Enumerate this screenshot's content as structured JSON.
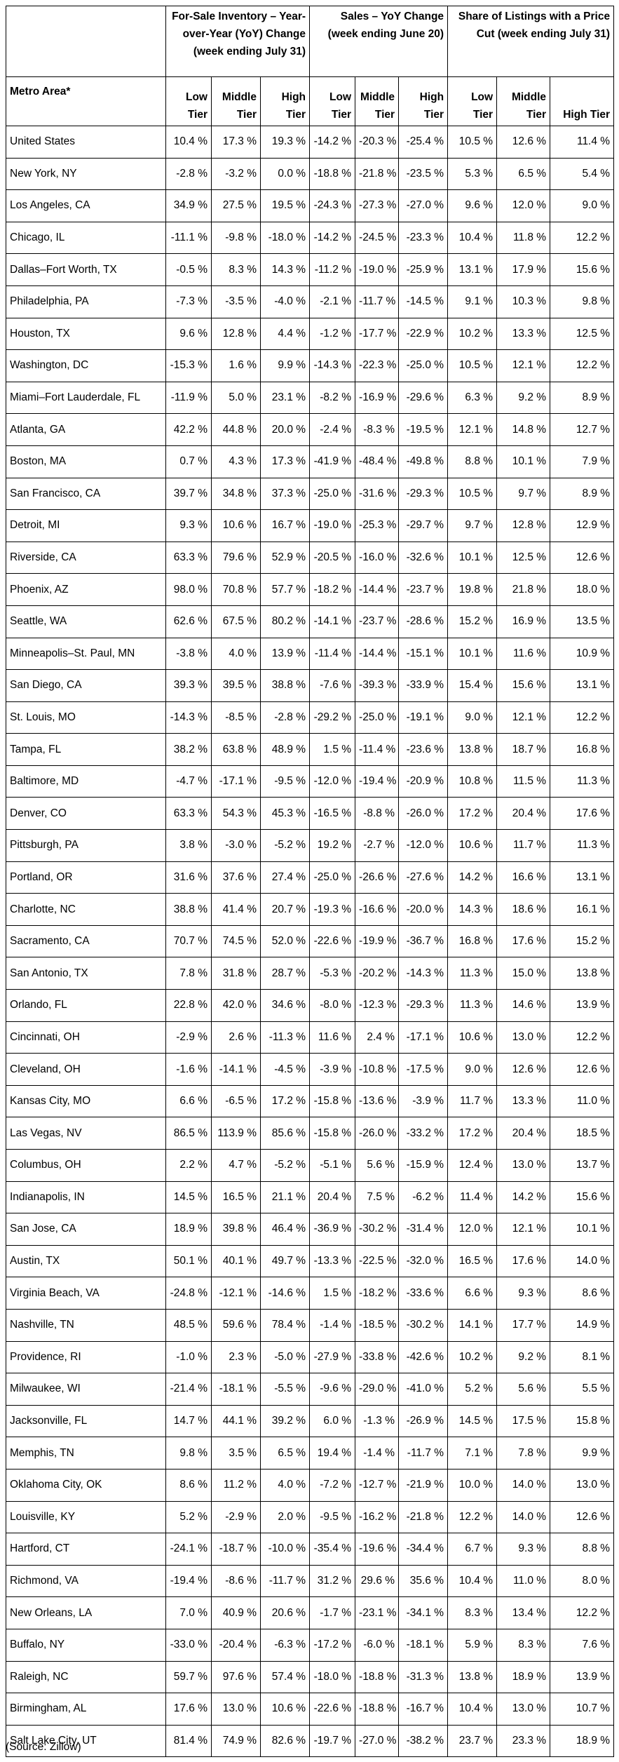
{
  "table": {
    "groups": [
      "For-Sale Inventory – Year-over-Year (YoY) Change (week ending July 31)",
      "Sales – YoY Change (week ending June 20)",
      "Share of Listings with a Price Cut (week ending July 31)"
    ],
    "metro_header": "Metro Area*",
    "tiers": [
      "Low Tier",
      "Middle Tier",
      "High Tier",
      "Low Tier",
      "Middle Tier",
      "High Tier",
      "Low Tier",
      "Middle Tier",
      "High Tier"
    ],
    "rows": [
      [
        "United States",
        "10.4 %",
        "17.3 %",
        "19.3 %",
        "-14.2 %",
        "-20.3 %",
        "-25.4 %",
        "10.5 %",
        "12.6 %",
        "11.4 %"
      ],
      [
        "New York, NY",
        "-2.8 %",
        "-3.2 %",
        "0.0 %",
        "-18.8 %",
        "-21.8 %",
        "-23.5 %",
        "5.3 %",
        "6.5 %",
        "5.4 %"
      ],
      [
        "Los Angeles, CA",
        "34.9 %",
        "27.5 %",
        "19.5 %",
        "-24.3 %",
        "-27.3 %",
        "-27.0 %",
        "9.6 %",
        "12.0 %",
        "9.0 %"
      ],
      [
        "Chicago, IL",
        "-11.1 %",
        "-9.8 %",
        "-18.0 %",
        "-14.2 %",
        "-24.5 %",
        "-23.3 %",
        "10.4 %",
        "11.8 %",
        "12.2 %"
      ],
      [
        "Dallas–Fort Worth, TX",
        "-0.5 %",
        "8.3 %",
        "14.3 %",
        "-11.2 %",
        "-19.0 %",
        "-25.9 %",
        "13.1 %",
        "17.9 %",
        "15.6 %"
      ],
      [
        "Philadelphia, PA",
        "-7.3 %",
        "-3.5 %",
        "-4.0 %",
        "-2.1 %",
        "-11.7 %",
        "-14.5 %",
        "9.1 %",
        "10.3 %",
        "9.8 %"
      ],
      [
        "Houston, TX",
        "9.6 %",
        "12.8 %",
        "4.4 %",
        "-1.2 %",
        "-17.7 %",
        "-22.9 %",
        "10.2 %",
        "13.3 %",
        "12.5 %"
      ],
      [
        "Washington, DC",
        "-15.3 %",
        "1.6 %",
        "9.9 %",
        "-14.3 %",
        "-22.3 %",
        "-25.0 %",
        "10.5 %",
        "12.1 %",
        "12.2 %"
      ],
      [
        "Miami–Fort Lauderdale, FL",
        "-11.9 %",
        "5.0 %",
        "23.1 %",
        "-8.2 %",
        "-16.9 %",
        "-29.6 %",
        "6.3 %",
        "9.2 %",
        "8.9 %"
      ],
      [
        "Atlanta, GA",
        "42.2 %",
        "44.8 %",
        "20.0 %",
        "-2.4 %",
        "-8.3 %",
        "-19.5 %",
        "12.1 %",
        "14.8 %",
        "12.7 %"
      ],
      [
        "Boston, MA",
        "0.7 %",
        "4.3 %",
        "17.3 %",
        "-41.9 %",
        "-48.4 %",
        "-49.8 %",
        "8.8 %",
        "10.1 %",
        "7.9 %"
      ],
      [
        "San Francisco, CA",
        "39.7 %",
        "34.8 %",
        "37.3 %",
        "-25.0 %",
        "-31.6 %",
        "-29.3 %",
        "10.5 %",
        "9.7 %",
        "8.9 %"
      ],
      [
        "Detroit, MI",
        "9.3 %",
        "10.6 %",
        "16.7 %",
        "-19.0 %",
        "-25.3 %",
        "-29.7 %",
        "9.7 %",
        "12.8 %",
        "12.9 %"
      ],
      [
        "Riverside, CA",
        "63.3 %",
        "79.6 %",
        "52.9 %",
        "-20.5 %",
        "-16.0 %",
        "-32.6 %",
        "10.1 %",
        "12.5 %",
        "12.6 %"
      ],
      [
        "Phoenix, AZ",
        "98.0 %",
        "70.8 %",
        "57.7 %",
        "-18.2 %",
        "-14.4 %",
        "-23.7 %",
        "19.8 %",
        "21.8 %",
        "18.0 %"
      ],
      [
        "Seattle, WA",
        "62.6 %",
        "67.5 %",
        "80.2 %",
        "-14.1 %",
        "-23.7 %",
        "-28.6 %",
        "15.2 %",
        "16.9 %",
        "13.5 %"
      ],
      [
        "Minneapolis–St. Paul, MN",
        "-3.8 %",
        "4.0 %",
        "13.9 %",
        "-11.4 %",
        "-14.4 %",
        "-15.1 %",
        "10.1 %",
        "11.6 %",
        "10.9 %"
      ],
      [
        "San Diego, CA",
        "39.3 %",
        "39.5 %",
        "38.8 %",
        "-7.6 %",
        "-39.3 %",
        "-33.9 %",
        "15.4 %",
        "15.6 %",
        "13.1 %"
      ],
      [
        "St. Louis, MO",
        "-14.3 %",
        "-8.5 %",
        "-2.8 %",
        "-29.2 %",
        "-25.0 %",
        "-19.1 %",
        "9.0 %",
        "12.1 %",
        "12.2 %"
      ],
      [
        "Tampa, FL",
        "38.2 %",
        "63.8 %",
        "48.9 %",
        "1.5 %",
        "-11.4 %",
        "-23.6 %",
        "13.8 %",
        "18.7 %",
        "16.8 %"
      ],
      [
        "Baltimore, MD",
        "-4.7 %",
        "-17.1 %",
        "-9.5 %",
        "-12.0 %",
        "-19.4 %",
        "-20.9 %",
        "10.8 %",
        "11.5 %",
        "11.3 %"
      ],
      [
        "Denver, CO",
        "63.3 %",
        "54.3 %",
        "45.3 %",
        "-16.5 %",
        "-8.8 %",
        "-26.0 %",
        "17.2 %",
        "20.4 %",
        "17.6 %"
      ],
      [
        "Pittsburgh, PA",
        "3.8 %",
        "-3.0 %",
        "-5.2 %",
        "19.2 %",
        "-2.7 %",
        "-12.0 %",
        "10.6 %",
        "11.7 %",
        "11.3 %"
      ],
      [
        "Portland, OR",
        "31.6 %",
        "37.6 %",
        "27.4 %",
        "-25.0 %",
        "-26.6 %",
        "-27.6 %",
        "14.2 %",
        "16.6 %",
        "13.1 %"
      ],
      [
        "Charlotte, NC",
        "38.8 %",
        "41.4 %",
        "20.7 %",
        "-19.3 %",
        "-16.6 %",
        "-20.0 %",
        "14.3 %",
        "18.6 %",
        "16.1 %"
      ],
      [
        "Sacramento, CA",
        "70.7 %",
        "74.5 %",
        "52.0 %",
        "-22.6 %",
        "-19.9 %",
        "-36.7 %",
        "16.8 %",
        "17.6 %",
        "15.2 %"
      ],
      [
        "San Antonio, TX",
        "7.8 %",
        "31.8 %",
        "28.7 %",
        "-5.3 %",
        "-20.2 %",
        "-14.3 %",
        "11.3 %",
        "15.0 %",
        "13.8 %"
      ],
      [
        "Orlando, FL",
        "22.8 %",
        "42.0 %",
        "34.6 %",
        "-8.0 %",
        "-12.3 %",
        "-29.3 %",
        "11.3 %",
        "14.6 %",
        "13.9 %"
      ],
      [
        "Cincinnati, OH",
        "-2.9 %",
        "2.6 %",
        "-11.3 %",
        "11.6 %",
        "2.4 %",
        "-17.1 %",
        "10.6 %",
        "13.0 %",
        "12.2 %"
      ],
      [
        "Cleveland, OH",
        "-1.6 %",
        "-14.1 %",
        "-4.5 %",
        "-3.9 %",
        "-10.8 %",
        "-17.5 %",
        "9.0 %",
        "12.6 %",
        "12.6 %"
      ],
      [
        "Kansas City, MO",
        "6.6 %",
        "-6.5 %",
        "17.2 %",
        "-15.8 %",
        "-13.6 %",
        "-3.9 %",
        "11.7 %",
        "13.3 %",
        "11.0 %"
      ],
      [
        "Las Vegas, NV",
        "86.5 %",
        "113.9 %",
        "85.6 %",
        "-15.8 %",
        "-26.0 %",
        "-33.2 %",
        "17.2 %",
        "20.4 %",
        "18.5 %"
      ],
      [
        "Columbus, OH",
        "2.2 %",
        "4.7 %",
        "-5.2 %",
        "-5.1 %",
        "5.6 %",
        "-15.9 %",
        "12.4 %",
        "13.0 %",
        "13.7 %"
      ],
      [
        "Indianapolis, IN",
        "14.5 %",
        "16.5 %",
        "21.1 %",
        "20.4 %",
        "7.5 %",
        "-6.2 %",
        "11.4 %",
        "14.2 %",
        "15.6 %"
      ],
      [
        "San Jose, CA",
        "18.9 %",
        "39.8 %",
        "46.4 %",
        "-36.9 %",
        "-30.2 %",
        "-31.4 %",
        "12.0 %",
        "12.1 %",
        "10.1 %"
      ],
      [
        "Austin, TX",
        "50.1 %",
        "40.1 %",
        "49.7 %",
        "-13.3 %",
        "-22.5 %",
        "-32.0 %",
        "16.5 %",
        "17.6 %",
        "14.0 %"
      ],
      [
        "Virginia Beach, VA",
        "-24.8 %",
        "-12.1 %",
        "-14.6 %",
        "1.5 %",
        "-18.2 %",
        "-33.6 %",
        "6.6 %",
        "9.3 %",
        "8.6 %"
      ],
      [
        "Nashville, TN",
        "48.5 %",
        "59.6 %",
        "78.4 %",
        "-1.4 %",
        "-18.5 %",
        "-30.2 %",
        "14.1 %",
        "17.7 %",
        "14.9 %"
      ],
      [
        "Providence, RI",
        "-1.0 %",
        "2.3 %",
        "-5.0 %",
        "-27.9 %",
        "-33.8 %",
        "-42.6 %",
        "10.2 %",
        "9.2 %",
        "8.1 %"
      ],
      [
        "Milwaukee, WI",
        "-21.4 %",
        "-18.1 %",
        "-5.5 %",
        "-9.6 %",
        "-29.0 %",
        "-41.0 %",
        "5.2 %",
        "5.6 %",
        "5.5 %"
      ],
      [
        "Jacksonville, FL",
        "14.7 %",
        "44.1 %",
        "39.2 %",
        "6.0 %",
        "-1.3 %",
        "-26.9 %",
        "14.5 %",
        "17.5 %",
        "15.8 %"
      ],
      [
        "Memphis, TN",
        "9.8 %",
        "3.5 %",
        "6.5 %",
        "19.4 %",
        "-1.4 %",
        "-11.7 %",
        "7.1 %",
        "7.8 %",
        "9.9 %"
      ],
      [
        "Oklahoma City, OK",
        "8.6 %",
        "11.2 %",
        "4.0 %",
        "-7.2 %",
        "-12.7 %",
        "-21.9 %",
        "10.0 %",
        "14.0 %",
        "13.0 %"
      ],
      [
        "Louisville, KY",
        "5.2 %",
        "-2.9 %",
        "2.0 %",
        "-9.5 %",
        "-16.2 %",
        "-21.8 %",
        "12.2 %",
        "14.0 %",
        "12.6 %"
      ],
      [
        "Hartford, CT",
        "-24.1 %",
        "-18.7 %",
        "-10.0 %",
        "-35.4 %",
        "-19.6 %",
        "-34.4 %",
        "6.7 %",
        "9.3 %",
        "8.8 %"
      ],
      [
        "Richmond, VA",
        "-19.4 %",
        "-8.6 %",
        "-11.7 %",
        "31.2 %",
        "29.6 %",
        "35.6 %",
        "10.4 %",
        "11.0 %",
        "8.0 %"
      ],
      [
        "New Orleans, LA",
        "7.0 %",
        "40.9 %",
        "20.6 %",
        "-1.7 %",
        "-23.1 %",
        "-34.1 %",
        "8.3 %",
        "13.4 %",
        "12.2 %"
      ],
      [
        "Buffalo, NY",
        "-33.0 %",
        "-20.4 %",
        "-6.3 %",
        "-17.2 %",
        "-6.0 %",
        "-18.1 %",
        "5.9 %",
        "8.3 %",
        "7.6 %"
      ],
      [
        "Raleigh, NC",
        "59.7 %",
        "97.6 %",
        "57.4 %",
        "-18.0 %",
        "-18.8 %",
        "-31.3 %",
        "13.8 %",
        "18.9 %",
        "13.9 %"
      ],
      [
        "Birmingham, AL",
        "17.6 %",
        "13.0 %",
        "10.6 %",
        "-22.6 %",
        "-18.8 %",
        "-16.7 %",
        "10.4 %",
        "13.0 %",
        "10.7 %"
      ],
      [
        "Salt Lake City, UT",
        "81.4 %",
        "74.9 %",
        "82.6 %",
        "-19.7 %",
        "-27.0 %",
        "-38.2 %",
        "23.7 %",
        "23.3 %",
        "18.9 %"
      ]
    ]
  },
  "source": "(Source: Zillow)"
}
